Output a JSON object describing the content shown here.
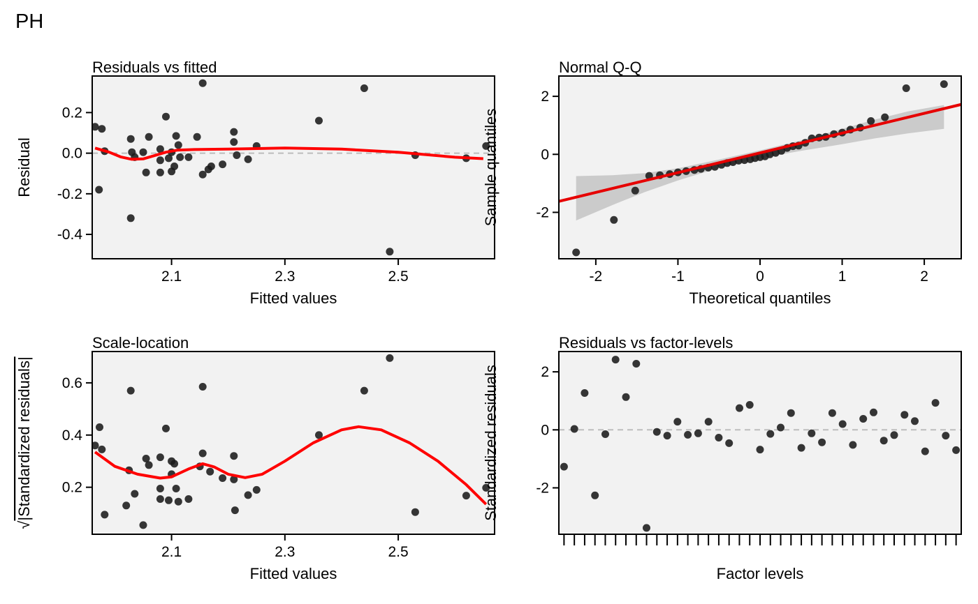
{
  "figure_title": "PH",
  "colors": {
    "panel_bg": "#f2f2f2",
    "point": "#1a1a1a",
    "smooth": "#ff0000",
    "qq_line": "#e60000",
    "ref": "#bdbdbd",
    "band": "#bebebe"
  },
  "chart_data": [
    {
      "type": "scatter",
      "title": "Residuals vs fitted",
      "xlabel": "Fitted values",
      "ylabel": "Residual",
      "xlim": [
        1.96,
        2.67
      ],
      "ylim": [
        -0.52,
        0.38
      ],
      "xticks": [
        2.1,
        2.3,
        2.5
      ],
      "xtick_labels": [
        "2.1",
        "2.3",
        "2.5"
      ],
      "yticks": [
        0.2,
        0.0,
        -0.2,
        -0.4
      ],
      "ytick_labels": [
        "0.2",
        "0.0",
        "-0.2",
        "-0.4"
      ],
      "hline": 0,
      "points": [
        [
          1.965,
          0.13
        ],
        [
          1.977,
          0.12
        ],
        [
          1.972,
          -0.18
        ],
        [
          1.982,
          0.01
        ],
        [
          2.028,
          -0.32
        ],
        [
          2.028,
          0.07
        ],
        [
          2.03,
          0.005
        ],
        [
          2.035,
          -0.02
        ],
        [
          2.05,
          0.005
        ],
        [
          2.055,
          -0.095
        ],
        [
          2.06,
          0.08
        ],
        [
          2.08,
          0.02
        ],
        [
          2.08,
          -0.035
        ],
        [
          2.08,
          -0.095
        ],
        [
          2.09,
          0.18
        ],
        [
          2.095,
          -0.025
        ],
        [
          2.1,
          0.005
        ],
        [
          2.1,
          -0.09
        ],
        [
          2.105,
          -0.065
        ],
        [
          2.108,
          0.085
        ],
        [
          2.112,
          0.04
        ],
        [
          2.115,
          -0.02
        ],
        [
          2.13,
          -0.02
        ],
        [
          2.145,
          0.08
        ],
        [
          2.155,
          0.345
        ],
        [
          2.155,
          -0.105
        ],
        [
          2.165,
          -0.08
        ],
        [
          2.17,
          -0.065
        ],
        [
          2.19,
          -0.055
        ],
        [
          2.21,
          0.105
        ],
        [
          2.21,
          0.055
        ],
        [
          2.215,
          -0.01
        ],
        [
          2.235,
          -0.03
        ],
        [
          2.25,
          0.035
        ],
        [
          2.36,
          0.16
        ],
        [
          2.44,
          0.32
        ],
        [
          2.485,
          -0.485
        ],
        [
          2.53,
          -0.01
        ],
        [
          2.62,
          -0.025
        ],
        [
          2.655,
          0.035
        ]
      ],
      "smooth": [
        [
          1.965,
          0.025
        ],
        [
          1.99,
          0.005
        ],
        [
          2.01,
          -0.018
        ],
        [
          2.03,
          -0.03
        ],
        [
          2.05,
          -0.028
        ],
        [
          2.07,
          -0.012
        ],
        [
          2.09,
          0.005
        ],
        [
          2.11,
          0.015
        ],
        [
          2.14,
          0.018
        ],
        [
          2.2,
          0.02
        ],
        [
          2.3,
          0.025
        ],
        [
          2.4,
          0.02
        ],
        [
          2.5,
          0.005
        ],
        [
          2.6,
          -0.02
        ],
        [
          2.65,
          -0.027
        ]
      ]
    },
    {
      "type": "scatter",
      "title": "Normal Q-Q",
      "xlabel": "Theoretical quantiles",
      "ylabel": "Sample quantiles",
      "xlim": [
        -2.45,
        2.45
      ],
      "ylim": [
        -3.6,
        2.7
      ],
      "xticks": [
        -2,
        -1,
        0,
        1,
        2
      ],
      "xtick_labels": [
        "-2",
        "-1",
        "0",
        "1",
        "2"
      ],
      "yticks": [
        2,
        0,
        -2
      ],
      "ytick_labels": [
        "2",
        "0",
        "-2"
      ],
      "points": [
        [
          -2.24,
          -3.38
        ],
        [
          -1.78,
          -2.26
        ],
        [
          -1.52,
          -1.25
        ],
        [
          -1.35,
          -0.74
        ],
        [
          -1.22,
          -0.72
        ],
        [
          -1.1,
          -0.68
        ],
        [
          -1.0,
          -0.62
        ],
        [
          -0.9,
          -0.58
        ],
        [
          -0.8,
          -0.54
        ],
        [
          -0.72,
          -0.5
        ],
        [
          -0.63,
          -0.46
        ],
        [
          -0.55,
          -0.43
        ],
        [
          -0.47,
          -0.36
        ],
        [
          -0.4,
          -0.3
        ],
        [
          -0.33,
          -0.27
        ],
        [
          -0.26,
          -0.22
        ],
        [
          -0.19,
          -0.2
        ],
        [
          -0.12,
          -0.17
        ],
        [
          -0.06,
          -0.13
        ],
        [
          0.0,
          -0.1
        ],
        [
          0.06,
          -0.07
        ],
        [
          0.12,
          0.0
        ],
        [
          0.19,
          0.05
        ],
        [
          0.26,
          0.12
        ],
        [
          0.33,
          0.22
        ],
        [
          0.4,
          0.28
        ],
        [
          0.47,
          0.3
        ],
        [
          0.55,
          0.4
        ],
        [
          0.63,
          0.55
        ],
        [
          0.72,
          0.58
        ],
        [
          0.8,
          0.6
        ],
        [
          0.9,
          0.7
        ],
        [
          1.0,
          0.75
        ],
        [
          1.1,
          0.85
        ],
        [
          1.22,
          0.92
        ],
        [
          1.35,
          1.15
        ],
        [
          1.52,
          1.28
        ],
        [
          1.78,
          2.28
        ],
        [
          2.24,
          2.42
        ]
      ],
      "qq_line": [
        [
          -2.45,
          -1.62
        ],
        [
          2.45,
          1.72
        ]
      ],
      "band": {
        "x": [
          -2.24,
          -1.8,
          -1.4,
          -1.0,
          -0.5,
          0,
          0.5,
          1.0,
          1.4,
          1.8,
          2.24
        ],
        "upper": [
          -0.75,
          -0.72,
          -0.65,
          -0.48,
          -0.18,
          0.14,
          0.48,
          0.88,
          1.2,
          1.48,
          1.7
        ],
        "lower": [
          -2.28,
          -1.75,
          -1.3,
          -0.9,
          -0.47,
          -0.13,
          0.12,
          0.35,
          0.55,
          0.72,
          0.88
        ]
      }
    },
    {
      "type": "scatter",
      "title": "Scale-location",
      "xlabel": "Fitted values",
      "ylabel": "Standardized residuals",
      "ylabel_prefix": "√",
      "xlim": [
        1.96,
        2.67
      ],
      "ylim": [
        0.02,
        0.72
      ],
      "xticks": [
        2.1,
        2.3,
        2.5
      ],
      "xtick_labels": [
        "2.1",
        "2.3",
        "2.5"
      ],
      "yticks": [
        0.6,
        0.4,
        0.2
      ],
      "ytick_labels": [
        "0.6",
        "0.4",
        "0.2"
      ],
      "points": [
        [
          1.965,
          0.36
        ],
        [
          1.973,
          0.43
        ],
        [
          1.977,
          0.345
        ],
        [
          1.982,
          0.095
        ],
        [
          2.02,
          0.13
        ],
        [
          2.025,
          0.265
        ],
        [
          2.028,
          0.57
        ],
        [
          2.035,
          0.175
        ],
        [
          2.05,
          0.055
        ],
        [
          2.055,
          0.31
        ],
        [
          2.06,
          0.285
        ],
        [
          2.08,
          0.315
        ],
        [
          2.08,
          0.195
        ],
        [
          2.08,
          0.155
        ],
        [
          2.09,
          0.425
        ],
        [
          2.095,
          0.15
        ],
        [
          2.1,
          0.25
        ],
        [
          2.1,
          0.3
        ],
        [
          2.105,
          0.29
        ],
        [
          2.108,
          0.195
        ],
        [
          2.112,
          0.145
        ],
        [
          2.13,
          0.155
        ],
        [
          2.15,
          0.28
        ],
        [
          2.155,
          0.585
        ],
        [
          2.155,
          0.33
        ],
        [
          2.168,
          0.26
        ],
        [
          2.19,
          0.235
        ],
        [
          2.21,
          0.32
        ],
        [
          2.21,
          0.23
        ],
        [
          2.212,
          0.112
        ],
        [
          2.235,
          0.17
        ],
        [
          2.25,
          0.19
        ],
        [
          2.36,
          0.4
        ],
        [
          2.44,
          0.57
        ],
        [
          2.485,
          0.695
        ],
        [
          2.53,
          0.105
        ],
        [
          2.62,
          0.168
        ],
        [
          2.655,
          0.198
        ]
      ],
      "smooth": [
        [
          1.965,
          0.335
        ],
        [
          2.0,
          0.28
        ],
        [
          2.04,
          0.25
        ],
        [
          2.08,
          0.235
        ],
        [
          2.1,
          0.24
        ],
        [
          2.13,
          0.27
        ],
        [
          2.155,
          0.29
        ],
        [
          2.175,
          0.278
        ],
        [
          2.2,
          0.25
        ],
        [
          2.23,
          0.237
        ],
        [
          2.26,
          0.25
        ],
        [
          2.3,
          0.3
        ],
        [
          2.35,
          0.37
        ],
        [
          2.4,
          0.42
        ],
        [
          2.43,
          0.432
        ],
        [
          2.47,
          0.42
        ],
        [
          2.52,
          0.37
        ],
        [
          2.57,
          0.3
        ],
        [
          2.62,
          0.21
        ],
        [
          2.655,
          0.135
        ]
      ]
    },
    {
      "type": "scatter",
      "title": "Residuals vs factor-levels",
      "xlabel": "Factor levels",
      "ylabel": "Standardized residuals",
      "xlim": [
        0.5,
        39.5
      ],
      "ylim": [
        -3.6,
        2.7
      ],
      "yticks": [
        2,
        0,
        -2
      ],
      "ytick_labels": [
        "2",
        "0",
        "-2"
      ],
      "hline": 0,
      "values": [
        -1.27,
        0.03,
        1.27,
        -2.26,
        -0.15,
        2.42,
        1.13,
        2.28,
        -3.38,
        -0.07,
        -0.2,
        0.28,
        -0.17,
        -0.12,
        0.28,
        -0.27,
        -0.46,
        0.75,
        0.86,
        -0.68,
        -0.14,
        0.08,
        0.58,
        -0.62,
        -0.12,
        -0.43,
        0.58,
        0.2,
        -0.52,
        0.38,
        0.6,
        -0.37,
        -0.18,
        0.52,
        0.3,
        -0.74,
        0.93,
        -0.2,
        -0.7
      ]
    }
  ]
}
